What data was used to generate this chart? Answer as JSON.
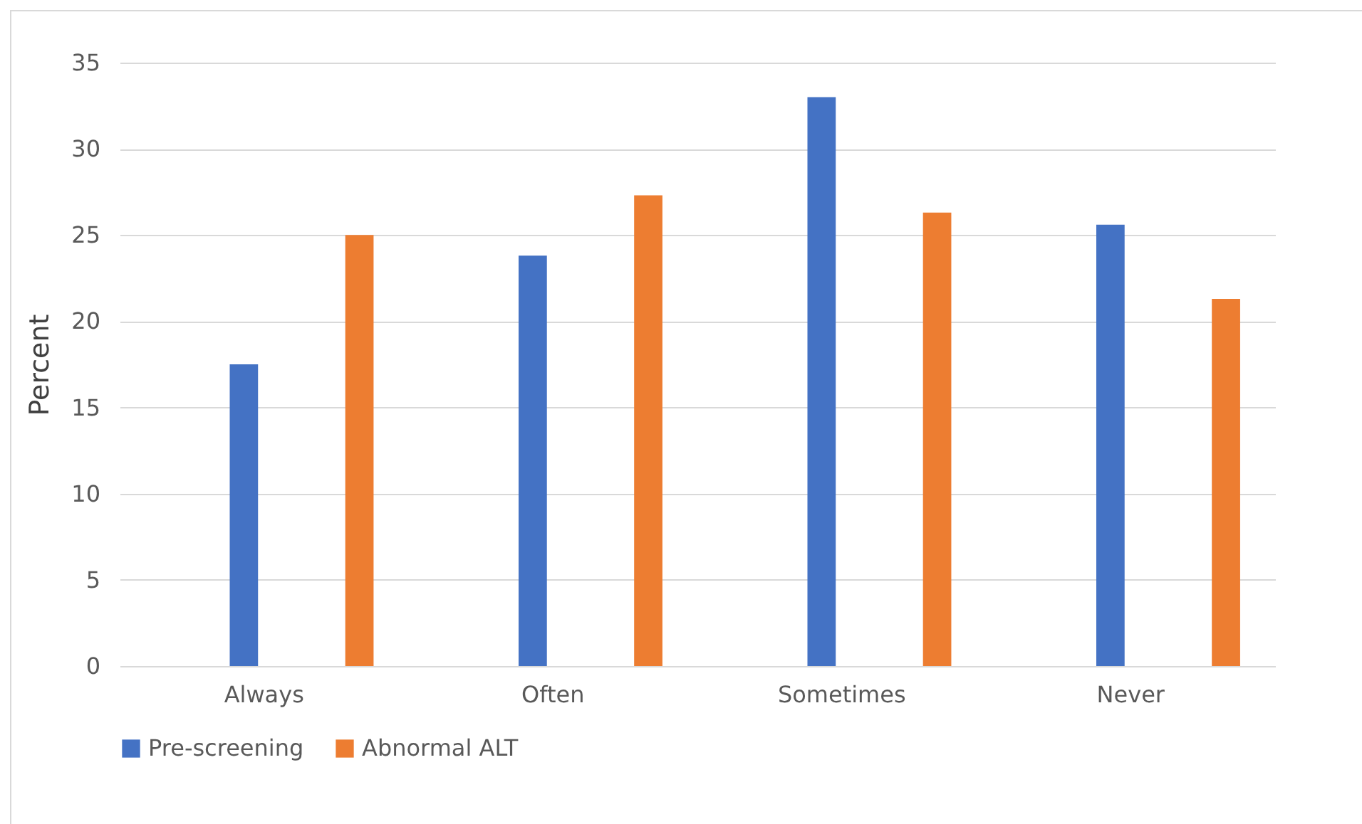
{
  "chart_data": {
    "type": "bar",
    "ylabel": "Percent",
    "categories": [
      "Always",
      "Often",
      "Sometimes",
      "Never"
    ],
    "series": [
      {
        "name": "Pre-screening",
        "color": "#4472c4",
        "values": [
          17.5,
          23.8,
          33.0,
          25.6
        ]
      },
      {
        "name": "Abnormal ALT",
        "color": "#ed7d31",
        "values": [
          25.0,
          27.3,
          26.3,
          21.3
        ]
      }
    ],
    "ylim": [
      0,
      35
    ],
    "yticks": [
      0,
      5,
      10,
      15,
      20,
      25,
      30,
      35
    ],
    "grid": "y",
    "legend": "bottom"
  }
}
